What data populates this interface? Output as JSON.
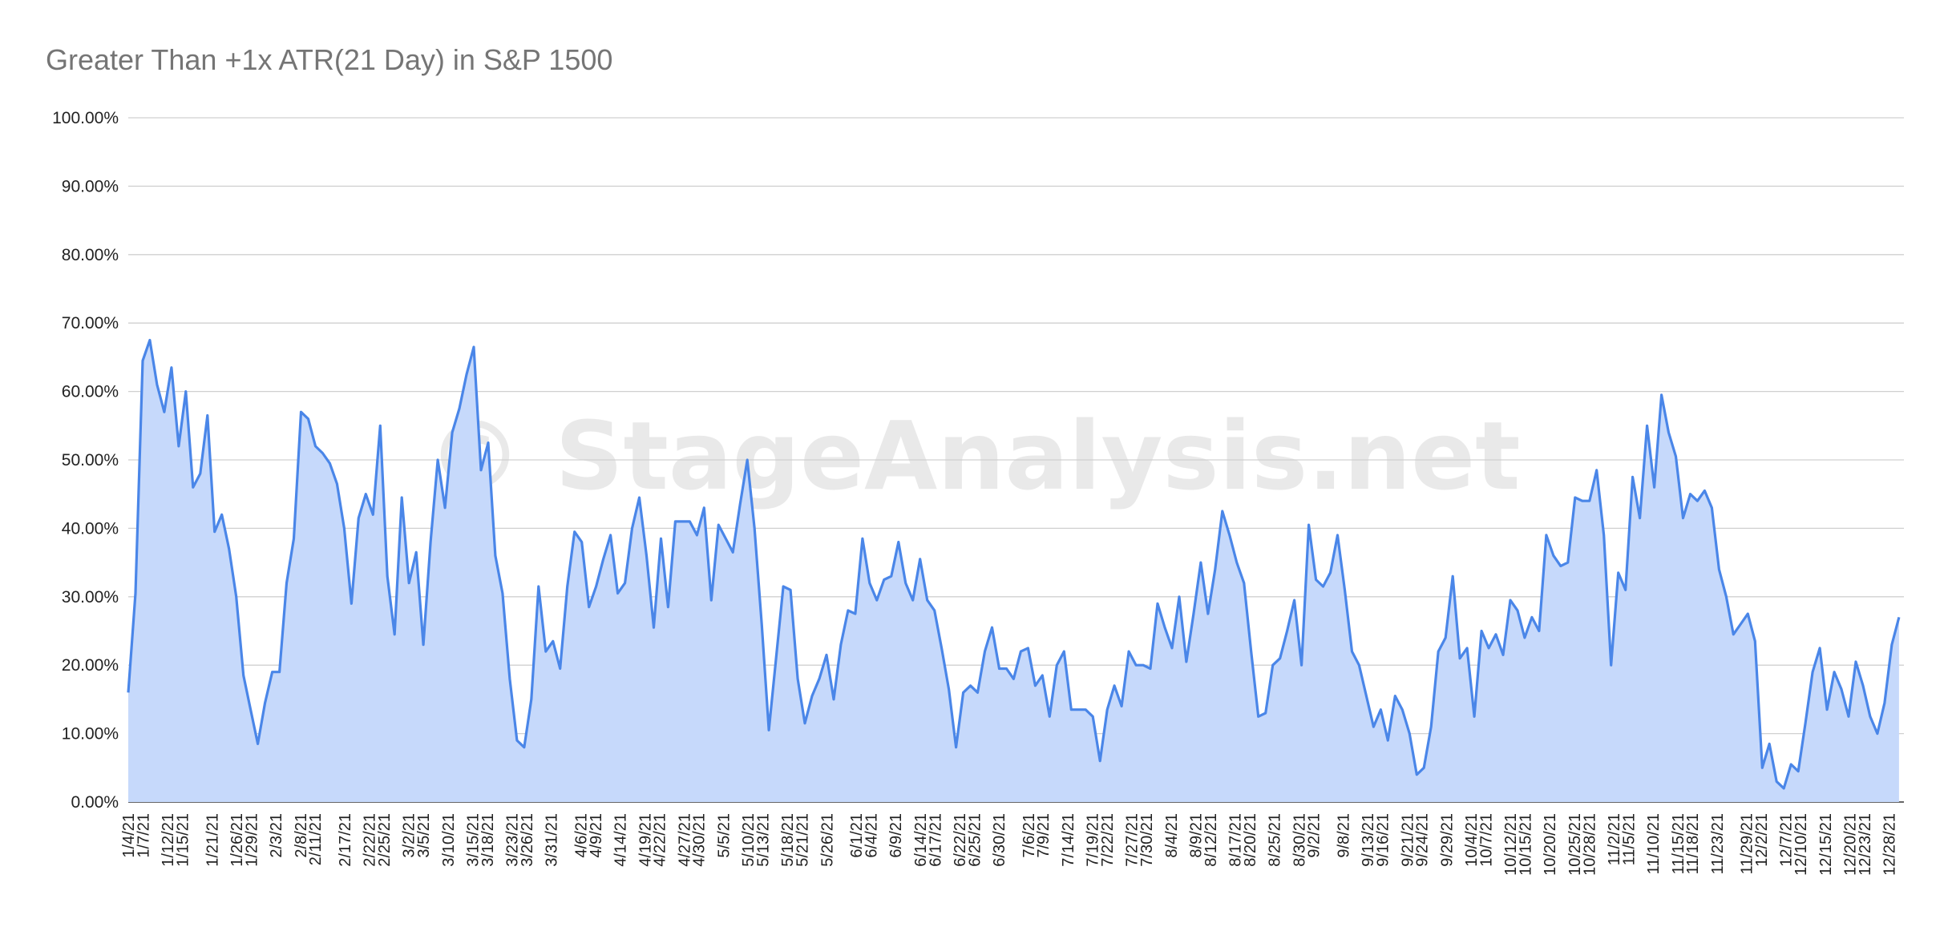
{
  "chart_data": {
    "type": "area",
    "title": "Greater Than +1x ATR(21 Day) in S&P 1500",
    "watermark": "© StageAnalysis.net",
    "xlabel": "",
    "ylabel": "",
    "ylim": [
      0,
      100
    ],
    "y_ticks": [
      "0.00%",
      "10.00%",
      "20.00%",
      "30.00%",
      "40.00%",
      "50.00%",
      "60.00%",
      "70.00%",
      "80.00%",
      "90.00%",
      "100.00%"
    ],
    "x_start_date": "2021-01-04",
    "x_end_date": "2021-12-31",
    "x_ticks": [
      "1/4/21",
      "1/7/21",
      "1/12/21",
      "1/15/21",
      "1/21/21",
      "1/26/21",
      "1/29/21",
      "2/3/21",
      "2/8/21",
      "2/11/21",
      "2/17/21",
      "2/22/21",
      "2/25/21",
      "3/2/21",
      "3/5/21",
      "3/10/21",
      "3/15/21",
      "3/18/21",
      "3/23/21",
      "3/26/21",
      "3/31/21",
      "4/6/21",
      "4/9/21",
      "4/14/21",
      "4/19/21",
      "4/22/21",
      "4/27/21",
      "4/30/21",
      "5/5/21",
      "5/10/21",
      "5/13/21",
      "5/18/21",
      "5/21/21",
      "5/26/21",
      "6/1/21",
      "6/4/21",
      "6/9/21",
      "6/14/21",
      "6/17/21",
      "6/22/21",
      "6/25/21",
      "6/30/21",
      "7/6/21",
      "7/9/21",
      "7/14/21",
      "7/19/21",
      "7/22/21",
      "7/27/21",
      "7/30/21",
      "8/4/21",
      "8/9/21",
      "8/12/21",
      "8/17/21",
      "8/20/21",
      "8/25/21",
      "8/30/21",
      "9/2/21",
      "9/8/21",
      "9/13/21",
      "9/16/21",
      "9/21/21",
      "9/24/21",
      "9/29/21",
      "10/4/21",
      "10/7/21",
      "10/12/21",
      "10/15/21",
      "10/20/21",
      "10/25/21",
      "10/28/21",
      "11/2/21",
      "11/5/21",
      "11/10/21",
      "11/15/21",
      "11/18/21",
      "11/23/21",
      "11/29/21",
      "12/2/21",
      "12/7/21",
      "12/10/21",
      "12/15/21",
      "12/20/21",
      "12/23/21",
      "12/28/21"
    ],
    "series": [
      {
        "name": "Greater Than +1x ATR(21 Day)",
        "color": "#4a86e8",
        "fill": "#c6d9fb",
        "values": [
          16.0,
          30.5,
          64.5,
          67.5,
          61.0,
          57.0,
          63.5,
          52.0,
          60.0,
          46.0,
          48.0,
          56.5,
          39.5,
          42.0,
          37.0,
          30.0,
          18.5,
          13.5,
          8.5,
          14.5,
          19.0,
          19.0,
          32.0,
          38.5,
          57.0,
          56.0,
          52.0,
          51.0,
          49.5,
          46.5,
          40.0,
          29.0,
          41.5,
          45.0,
          42.0,
          55.0,
          33.0,
          24.5,
          44.5,
          32.0,
          36.5,
          23.0,
          38.0,
          50.0,
          43.0,
          54.0,
          57.5,
          62.5,
          66.5,
          48.5,
          52.5,
          36.0,
          30.5,
          18.0,
          9.0,
          8.0,
          15.0,
          31.5,
          22.0,
          23.5,
          19.5,
          31.5,
          39.5,
          38.0,
          28.5,
          31.5,
          35.5,
          39.0,
          30.5,
          32.0,
          40.0,
          44.5,
          36.0,
          25.5,
          38.5,
          28.5,
          41.0,
          41.0,
          41.0,
          39.0,
          43.0,
          29.5,
          40.5,
          38.5,
          36.5,
          43.5,
          50.0,
          40.0,
          26.0,
          10.5,
          21.0,
          31.5,
          31.0,
          18.0,
          11.5,
          15.5,
          18.0,
          21.5,
          15.0,
          23.0,
          28.0,
          27.5,
          38.5,
          32.0,
          29.5,
          32.5,
          33.0,
          38.0,
          32.0,
          29.5,
          35.5,
          29.5,
          28.0,
          22.5,
          16.5,
          8.0,
          16.0,
          17.0,
          16.0,
          22.0,
          25.5,
          19.5,
          19.5,
          18.0,
          22.0,
          22.5,
          17.0,
          18.5,
          12.5,
          20.0,
          22.0,
          13.5,
          13.5,
          13.5,
          12.5,
          6.0,
          13.5,
          17.0,
          14.0,
          22.0,
          20.0,
          20.0,
          19.5,
          29.0,
          25.5,
          22.5,
          30.0,
          20.5,
          27.5,
          35.0,
          27.5,
          34.0,
          42.5,
          39.0,
          35.0,
          32.0,
          22.0,
          12.5,
          13.0,
          20.0,
          21.0,
          25.0,
          29.5,
          20.0,
          40.5,
          32.5,
          31.5,
          33.5,
          39.0,
          31.0,
          22.0,
          20.0,
          15.5,
          11.0,
          13.5,
          9.0,
          15.5,
          13.5,
          10.0,
          4.0,
          5.0,
          11.0,
          22.0,
          24.0,
          33.0,
          21.0,
          22.5,
          12.5,
          25.0,
          22.5,
          24.5,
          21.5,
          29.5,
          28.0,
          24.0,
          27.0,
          25.0,
          39.0,
          36.0,
          34.5,
          35.0,
          44.5,
          44.0,
          44.0,
          48.5,
          39.0,
          20.0,
          33.5,
          31.0,
          47.5,
          41.5,
          55.0,
          46.0,
          59.5,
          54.0,
          50.5,
          41.5,
          45.0,
          44.0,
          45.5,
          43.0,
          34.0,
          30.0,
          24.5,
          26.0,
          27.5,
          23.5,
          5.0,
          8.5,
          3.0,
          2.0,
          5.5,
          4.5,
          11.5,
          19.0,
          22.5,
          13.5,
          19.0,
          16.5,
          12.5,
          20.5,
          17.0,
          12.5,
          10.0,
          14.5,
          23.0,
          27.0
        ]
      }
    ],
    "grid": true,
    "legend": "none"
  }
}
